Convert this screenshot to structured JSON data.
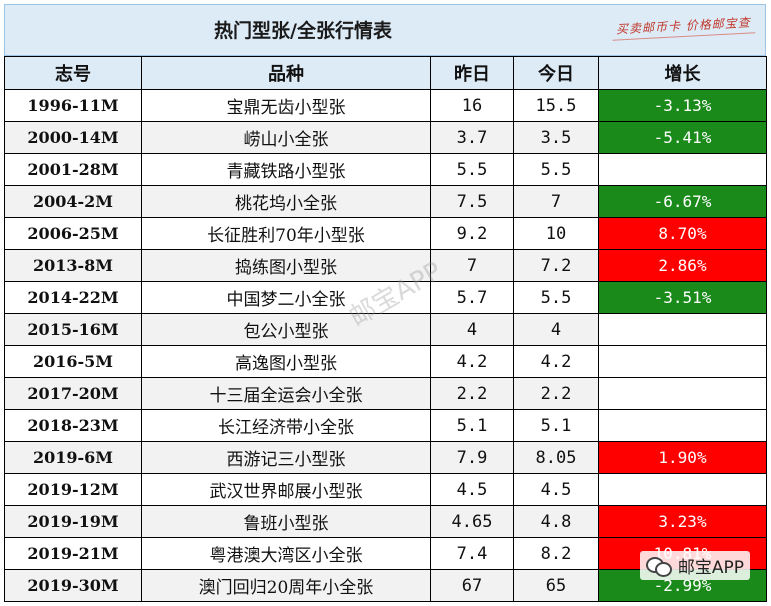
{
  "title": "热门型张/全张行情表",
  "slogan": "买卖邮币卡 价格邮宝查",
  "watermark": "邮宝APP",
  "brand": {
    "label": "邮宝APP",
    "icon": "wechat-icon"
  },
  "columns": [
    "志号",
    "品种",
    "昨日",
    "今日",
    "增长"
  ],
  "colors": {
    "header_bg": "#ddebf7",
    "up": "#ff0000",
    "down": "#1a8a1a"
  },
  "rows": [
    {
      "code": "1996-11M",
      "name": "宝鼎无齿小型张",
      "yesterday": "16",
      "today": "15.5",
      "change": "-3.13%",
      "trend": "down"
    },
    {
      "code": "2000-14M",
      "name": "崂山小全张",
      "yesterday": "3.7",
      "today": "3.5",
      "change": "-5.41%",
      "trend": "down"
    },
    {
      "code": "2001-28M",
      "name": "青藏铁路小型张",
      "yesterday": "5.5",
      "today": "5.5",
      "change": "",
      "trend": "flat"
    },
    {
      "code": "2004-2M",
      "name": "桃花坞小全张",
      "yesterday": "7.5",
      "today": "7",
      "change": "-6.67%",
      "trend": "down"
    },
    {
      "code": "2006-25M",
      "name": "长征胜利70年小型张",
      "yesterday": "9.2",
      "today": "10",
      "change": "8.70%",
      "trend": "up"
    },
    {
      "code": "2013-8M",
      "name": "捣练图小型张",
      "yesterday": "7",
      "today": "7.2",
      "change": "2.86%",
      "trend": "up"
    },
    {
      "code": "2014-22M",
      "name": "中国梦二小全张",
      "yesterday": "5.7",
      "today": "5.5",
      "change": "-3.51%",
      "trend": "down"
    },
    {
      "code": "2015-16M",
      "name": "包公小型张",
      "yesterday": "4",
      "today": "4",
      "change": "",
      "trend": "flat"
    },
    {
      "code": "2016-5M",
      "name": "高逸图小型张",
      "yesterday": "4.2",
      "today": "4.2",
      "change": "",
      "trend": "flat"
    },
    {
      "code": "2017-20M",
      "name": "十三届全运会小全张",
      "yesterday": "2.2",
      "today": "2.2",
      "change": "",
      "trend": "flat"
    },
    {
      "code": "2018-23M",
      "name": "长江经济带小全张",
      "yesterday": "5.1",
      "today": "5.1",
      "change": "",
      "trend": "flat"
    },
    {
      "code": "2019-6M",
      "name": "西游记三小型张",
      "yesterday": "7.9",
      "today": "8.05",
      "change": "1.90%",
      "trend": "up"
    },
    {
      "code": "2019-12M",
      "name": "武汉世界邮展小型张",
      "yesterday": "4.5",
      "today": "4.5",
      "change": "",
      "trend": "flat"
    },
    {
      "code": "2019-19M",
      "name": "鲁班小型张",
      "yesterday": "4.65",
      "today": "4.8",
      "change": "3.23%",
      "trend": "up"
    },
    {
      "code": "2019-21M",
      "name": "粤港澳大湾区小全张",
      "yesterday": "7.4",
      "today": "8.2",
      "change": "10.81%",
      "trend": "up"
    },
    {
      "code": "2019-30M",
      "name": "澳门回归20周年小全张",
      "yesterday": "67",
      "today": "65",
      "change": "-2.99%",
      "trend": "down"
    }
  ]
}
